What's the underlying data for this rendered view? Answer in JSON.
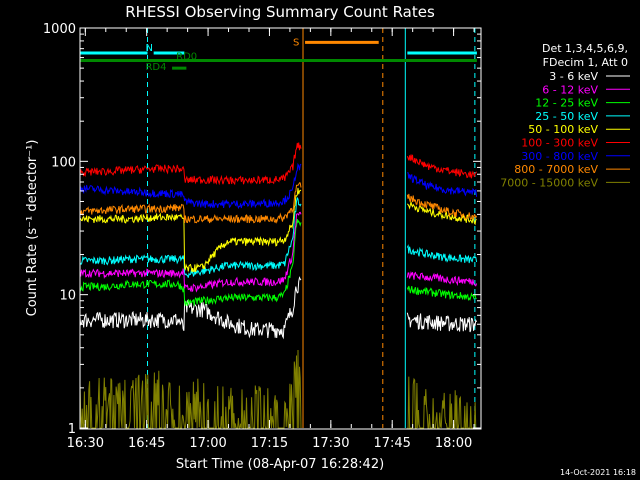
{
  "chart_data": {
    "type": "line",
    "title": "RHESSI Observing Summary Count Rates",
    "xlabel": "Start Time (08-Apr-07 16:28:42)",
    "ylabel": "Count Rate (s⁻¹ detector⁻¹)",
    "yscale": "log",
    "ylim": [
      1,
      1000
    ],
    "xlim_minutes": [
      0,
      98
    ],
    "x_ticks": [
      {
        "t": 1.3,
        "label": "16:30"
      },
      {
        "t": 16.3,
        "label": "16:45"
      },
      {
        "t": 31.3,
        "label": "17:00"
      },
      {
        "t": 46.3,
        "label": "17:15"
      },
      {
        "t": 61.3,
        "label": "17:30"
      },
      {
        "t": 76.3,
        "label": "17:45"
      },
      {
        "t": 91.3,
        "label": "18:00"
      }
    ],
    "y_ticks": [
      {
        "v": 1,
        "label": "1"
      },
      {
        "v": 10,
        "label": "10"
      },
      {
        "v": 100,
        "label": "100"
      },
      {
        "v": 1000,
        "label": "1000"
      }
    ],
    "legend_header": [
      "Det 1,3,4,5,6,9,",
      "FDecim 1, Att 0"
    ],
    "series": [
      {
        "name": "3 - 6 keV",
        "color": "#ffffff",
        "values": [
          6.5,
          6.5,
          6.5,
          6.5,
          6.5,
          5.5,
          8,
          7.8,
          6.2,
          5.5,
          5.5,
          5.5,
          8,
          12,
          6.5,
          6.3,
          6.1,
          6.0
        ]
      },
      {
        "name": "6 - 12 keV",
        "color": "#ff00ff",
        "values": [
          14.5,
          14.5,
          14.5,
          14.5,
          14.5,
          15,
          11,
          11.5,
          12.5,
          12.5,
          12.5,
          13,
          20,
          40,
          14,
          13.5,
          13,
          12.5
        ]
      },
      {
        "name": "12 - 25 keV",
        "color": "#00ff00",
        "values": [
          11.5,
          11.5,
          12,
          12,
          12,
          11,
          8.5,
          9,
          9.5,
          9.5,
          9.5,
          10,
          16,
          35,
          11,
          10.5,
          10,
          9.5
        ]
      },
      {
        "name": "25 - 50 keV",
        "color": "#00ffff",
        "values": [
          18,
          18,
          18.5,
          18.5,
          18.5,
          18.5,
          14,
          15,
          16.5,
          16.5,
          16.5,
          17,
          26,
          50,
          22,
          20,
          19,
          18
        ]
      },
      {
        "name": "50 - 100 keV",
        "color": "#ffff00",
        "values": [
          37,
          37,
          37,
          38,
          38,
          37,
          15.5,
          16,
          25,
          25,
          25,
          26,
          34,
          60,
          48,
          42,
          39,
          36
        ]
      },
      {
        "name": "100 - 300 keV",
        "color": "#ff0000",
        "values": [
          83,
          84,
          86,
          88,
          88,
          86,
          72,
          73,
          72,
          72,
          73,
          74,
          90,
          130,
          110,
          92,
          85,
          78
        ]
      },
      {
        "name": "300 - 800 keV",
        "color": "#0000ff",
        "values": [
          63,
          61,
          59,
          58,
          57,
          55,
          50,
          48,
          48,
          48,
          49,
          51,
          60,
          90,
          78,
          65,
          61,
          58
        ]
      },
      {
        "name": "800 - 7000 keV",
        "color": "#ff8800",
        "values": [
          42,
          43,
          44,
          44,
          45,
          44,
          37,
          37,
          37,
          37,
          37,
          38,
          45,
          65,
          54,
          47,
          42,
          38
        ]
      },
      {
        "name": "7000 - 15000 keV",
        "color": "#808000",
        "values": [
          1.6,
          1.8,
          1.7,
          2.0,
          1.7,
          1.8,
          1.6,
          1.7,
          1.5,
          1.6,
          1.4,
          1.5,
          1.8,
          3.0,
          1.9,
          1.6,
          1.4,
          1.3
        ]
      }
    ],
    "series_times_minutes": [
      0,
      6,
      12,
      18,
      24,
      25.5,
      24.5,
      30,
      36,
      42,
      48,
      50,
      52,
      53,
      80,
      85,
      90,
      97
    ],
    "gap_minutes": [
      54,
      80
    ],
    "annotations": [
      {
        "label": "N",
        "color": "#00ffff",
        "segments": [
          [
            0,
            16.5
          ],
          [
            18,
            25.5
          ],
          [
            80,
            97
          ]
        ],
        "level": 650
      },
      {
        "label": "S",
        "color": "#ff8800",
        "segments": [
          [
            55,
            73
          ]
        ],
        "level": 780
      },
      {
        "label": "RD0",
        "color": "#008800",
        "segments": [
          [
            0,
            97
          ]
        ],
        "level": 570
      },
      {
        "label": "RD4",
        "color": "#008800",
        "segments": [
          [
            22.5,
            26
          ]
        ],
        "level": 500
      }
    ],
    "vlines": [
      {
        "t": 0,
        "color": "#00ffff",
        "style": "solid"
      },
      {
        "t": 16.5,
        "color": "#00ffff",
        "style": "dashed"
      },
      {
        "t": 54.5,
        "color": "#ff8800",
        "style": "solid"
      },
      {
        "t": 74,
        "color": "#ff8800",
        "style": "dashed"
      },
      {
        "t": 79.5,
        "color": "#00ffff",
        "style": "solid"
      },
      {
        "t": 96.5,
        "color": "#00ffff",
        "style": "dashed"
      }
    ]
  },
  "footer": {
    "date": "14-Oct-2021 16:18"
  }
}
